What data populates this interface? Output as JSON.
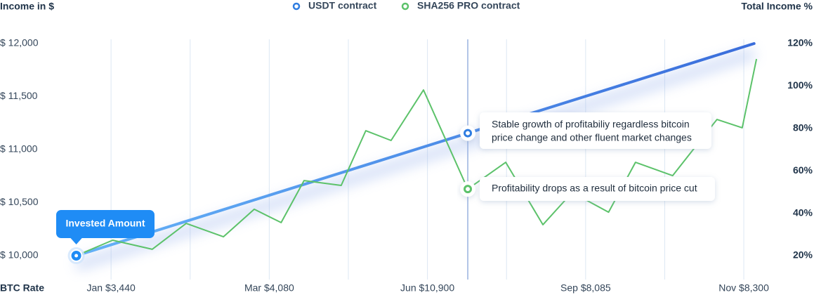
{
  "chart_data": {
    "type": "line",
    "ylabel": "Income in $",
    "y2label": "Total Income %",
    "xlabel": "BTC Rate",
    "xlim": [
      -1.2,
      8.55
    ],
    "xticks": [
      {
        "value": 0,
        "label": "Jan $3,440"
      },
      1,
      {
        "value": 2,
        "label": "Mar $4,080"
      },
      3,
      {
        "value": 4,
        "label": "Jun $10,900"
      },
      5,
      {
        "value": 6,
        "label": "Sep $8,085"
      },
      7,
      {
        "value": 8,
        "label": "Nov $8,300"
      }
    ],
    "ylim": [
      10000,
      12000
    ],
    "yticks": [
      {
        "value": 10000,
        "label": "$ 10,000"
      },
      {
        "value": 10500,
        "label": "$ 10,500"
      },
      {
        "value": 11000,
        "label": "$ 11,000"
      },
      {
        "value": 11500,
        "label": "$ 11,500"
      },
      {
        "value": 12000,
        "label": "$ 12,000"
      }
    ],
    "y2lim": [
      20,
      120
    ],
    "y2ticks": [
      {
        "value": 20,
        "label": "20%"
      },
      {
        "value": 40,
        "label": "40%"
      },
      {
        "value": 60,
        "label": "60%"
      },
      {
        "value": 80,
        "label": "80%"
      },
      {
        "value": 100,
        "label": "100%"
      },
      {
        "value": 120,
        "label": "120%"
      }
    ],
    "grid": true,
    "legend": "top",
    "series": [
      {
        "name": "USDT contract",
        "color": "#2f7de1",
        "x": [
          -0.44,
          8.13
        ],
        "values": [
          10000,
          12000
        ]
      },
      {
        "name": "SHA256 PRO contract",
        "color": "#5cc26a",
        "axis": "y2",
        "x": [
          -0.44,
          0.02,
          0.52,
          0.95,
          1.42,
          1.81,
          2.15,
          2.44,
          2.91,
          3.22,
          3.54,
          3.95,
          4.51,
          4.99,
          5.46,
          5.83,
          6.29,
          6.63,
          7.1,
          7.66,
          7.98,
          8.16
        ],
        "values": [
          20,
          27.3,
          23,
          35.2,
          28.9,
          41.9,
          35.6,
          55.4,
          53.1,
          78.9,
          74.3,
          98.1,
          51.4,
          64,
          34.6,
          49.8,
          40.5,
          64,
          57.7,
          84.2,
          80.3,
          112.7
        ]
      }
    ],
    "annotations": [
      "Invested Amount",
      "Stable growth of profitabiliy regardless bitcoin",
      "price change and other fluent market changes",
      "Profitability drops as a result of bitcoin price cut"
    ]
  }
}
